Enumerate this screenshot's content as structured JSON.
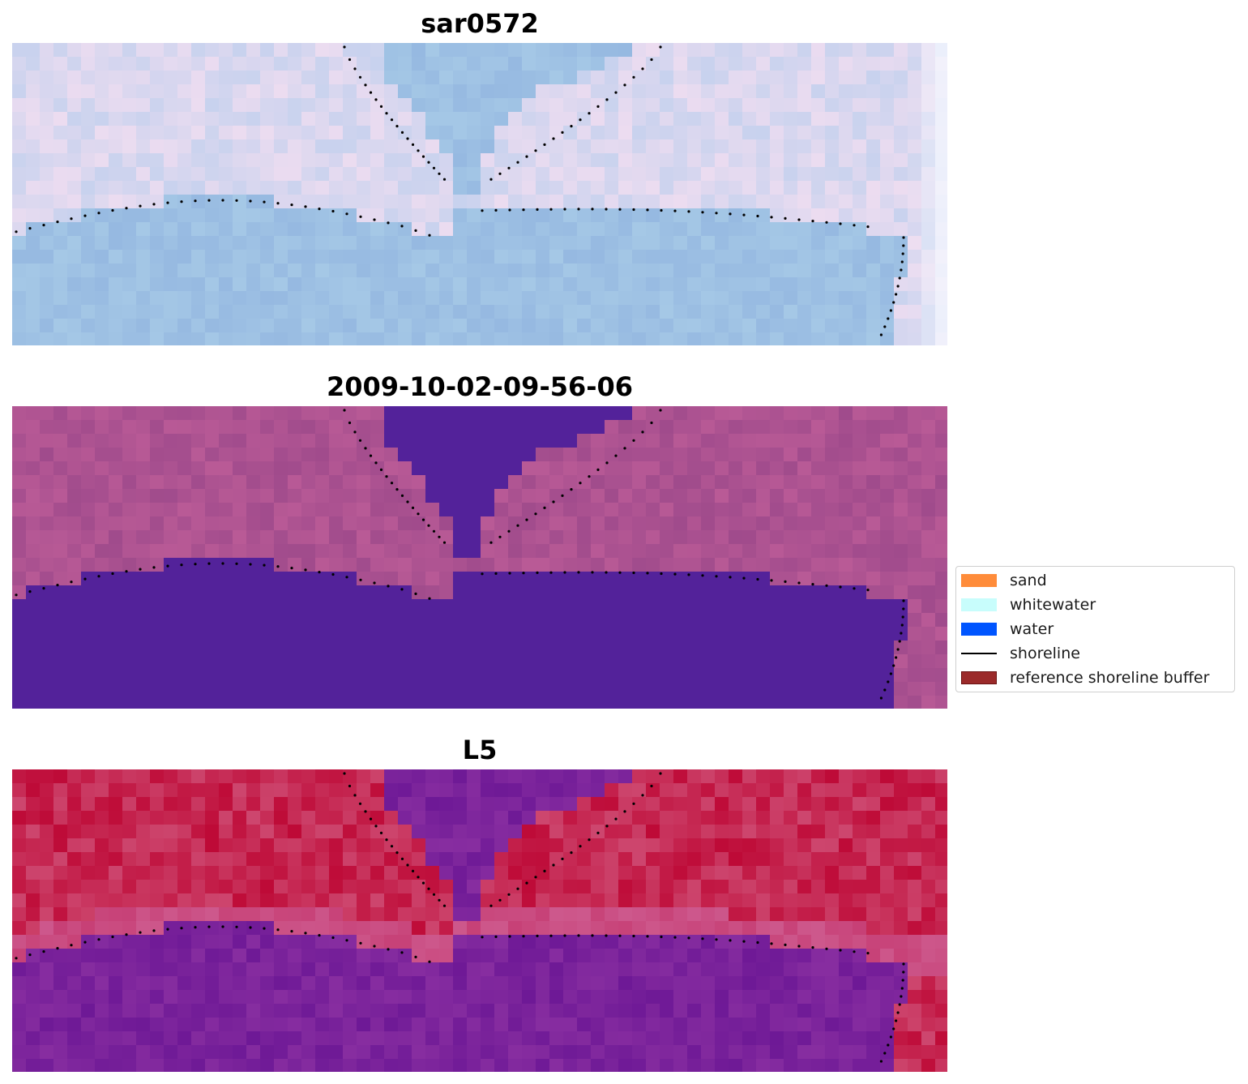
{
  "panels": [
    {
      "title": "sar0572",
      "style": "rgb"
    },
    {
      "title": "2009-10-02-09-56-06",
      "style": "classified"
    },
    {
      "title": "L5",
      "style": "index"
    }
  ],
  "legend": {
    "items": [
      {
        "label": "sand",
        "kind": "patch",
        "color": "#ff8c3a"
      },
      {
        "label": "whitewater",
        "kind": "patch",
        "color": "#c8fdfc"
      },
      {
        "label": "water",
        "kind": "patch",
        "color": "#0055ff"
      },
      {
        "label": "shoreline",
        "kind": "line",
        "color": "#000000"
      },
      {
        "label": "reference shoreline buffer",
        "kind": "patch",
        "color": "#9b2a2a",
        "edge": "#6a1212"
      }
    ]
  },
  "colors": {
    "water_class": "#53229a",
    "rgb_water": "#9cbce0",
    "rgb_land": "#dcd8f0",
    "index_land": "#c0103c",
    "index_water": "#701e98"
  }
}
